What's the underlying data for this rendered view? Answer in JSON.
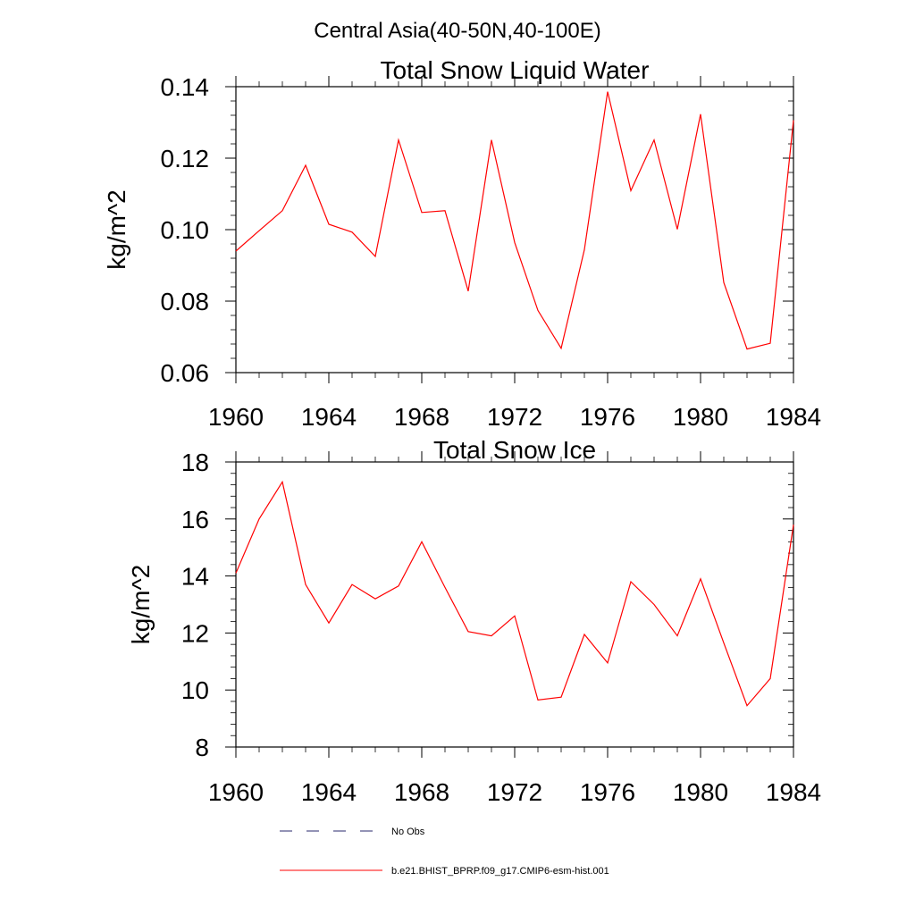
{
  "figure": {
    "suptitle": "Central Asia(40-50N,40-100E)"
  },
  "chart_data": [
    {
      "type": "line",
      "title": "Total Snow Liquid Water",
      "xlabel": "",
      "ylabel": "kg/m^2",
      "xlim": [
        1960,
        1984
      ],
      "ylim": [
        0.06,
        0.14
      ],
      "x_ticks": [
        1960,
        1964,
        1968,
        1972,
        1976,
        1980,
        1984
      ],
      "x_tick_labels": [
        "1960",
        "1964",
        "1968",
        "1972",
        "1976",
        "1980",
        "1984"
      ],
      "y_ticks": [
        0.06,
        0.08,
        0.1,
        0.12,
        0.14
      ],
      "y_tick_labels": [
        "0.06",
        "0.08",
        "0.10",
        "0.12",
        "0.14"
      ],
      "x": [
        1960,
        1961,
        1962,
        1963,
        1964,
        1965,
        1966,
        1967,
        1968,
        1969,
        1970,
        1971,
        1972,
        1973,
        1974,
        1975,
        1976,
        1977,
        1978,
        1979,
        1980,
        1981,
        1982,
        1983,
        1984
      ],
      "series": [
        {
          "name": "b.e21.BHIST_BPRP.f09_g17.CMIP6-esm-hist.001",
          "color": "#ff0000",
          "values": [
            0.094,
            0.0997,
            0.1053,
            0.118,
            0.1015,
            0.0993,
            0.0925,
            0.1251,
            0.1048,
            0.1053,
            0.0828,
            0.1251,
            0.0964,
            0.0774,
            0.0668,
            0.0944,
            0.1386,
            0.1109,
            0.1251,
            0.1001,
            0.1323,
            0.0852,
            0.0666,
            0.0682,
            0.1306
          ]
        }
      ],
      "grid": false
    },
    {
      "type": "line",
      "title": "Total Snow Ice",
      "xlabel": "",
      "ylabel": "kg/m^2",
      "xlim": [
        1960,
        1984
      ],
      "ylim": [
        8,
        18
      ],
      "x_ticks": [
        1960,
        1964,
        1968,
        1972,
        1976,
        1980,
        1984
      ],
      "x_tick_labels": [
        "1960",
        "1964",
        "1968",
        "1972",
        "1976",
        "1980",
        "1984"
      ],
      "y_ticks": [
        8,
        10,
        12,
        14,
        16,
        18
      ],
      "y_tick_labels": [
        "8",
        "10",
        "12",
        "14",
        "16",
        "18"
      ],
      "x": [
        1960,
        1961,
        1962,
        1963,
        1964,
        1965,
        1966,
        1967,
        1968,
        1969,
        1970,
        1971,
        1972,
        1973,
        1974,
        1975,
        1976,
        1977,
        1978,
        1979,
        1980,
        1981,
        1982,
        1983,
        1984
      ],
      "series": [
        {
          "name": "b.e21.BHIST_BPRP.f09_g17.CMIP6-esm-hist.001",
          "color": "#ff0000",
          "values": [
            14.1,
            16.0,
            17.3,
            13.7,
            12.35,
            13.7,
            13.2,
            13.65,
            15.2,
            13.6,
            12.05,
            11.9,
            12.6,
            9.65,
            9.75,
            11.95,
            10.95,
            13.8,
            13.0,
            11.9,
            13.9,
            11.65,
            9.45,
            10.4,
            15.8
          ]
        }
      ],
      "grid": false
    }
  ],
  "legend": {
    "placement": "bottom",
    "entries": [
      {
        "label": "No Obs",
        "color": "#2a2a6e",
        "style": "dashed"
      },
      {
        "label": "b.e21.BHIST_BPRP.f09_g17.CMIP6-esm-hist.001",
        "color": "#ff0000",
        "style": "solid"
      }
    ]
  }
}
